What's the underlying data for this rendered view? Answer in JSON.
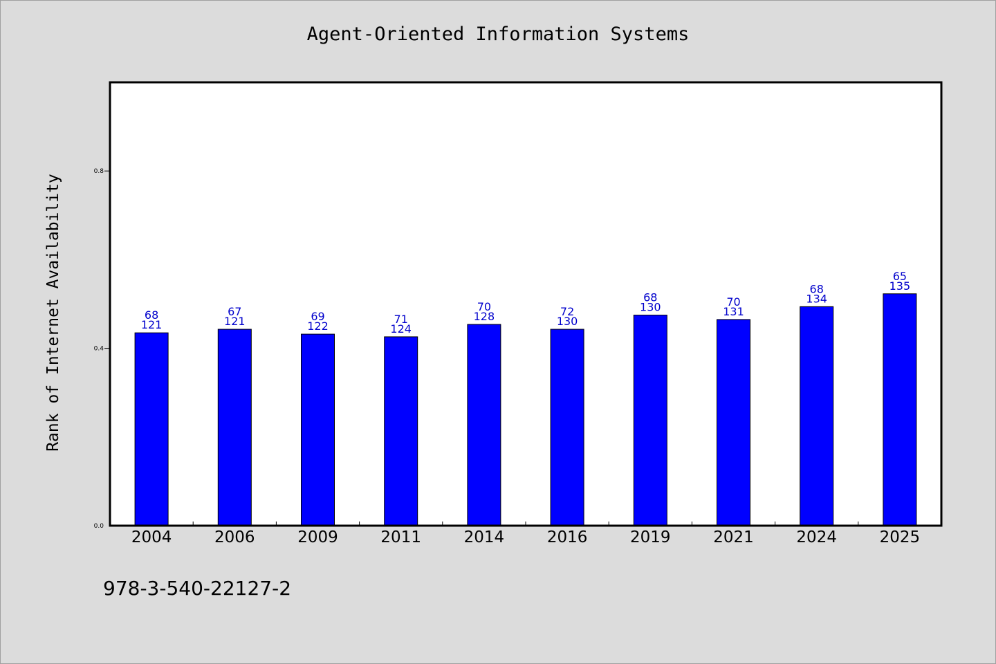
{
  "title": "Agent-Oriented Information Systems",
  "footer": "978-3-540-22127-2",
  "chart_data": {
    "type": "bar",
    "title": "Agent-Oriented Information Systems",
    "xlabel": "",
    "ylabel": "Rank of Internet Availability",
    "categories": [
      "2004",
      "2006",
      "2009",
      "2011",
      "2014",
      "2016",
      "2019",
      "2021",
      "2024",
      "2025"
    ],
    "values": [
      0.435,
      0.443,
      0.432,
      0.426,
      0.454,
      0.443,
      0.475,
      0.465,
      0.494,
      0.523
    ],
    "data_labels_top": [
      "68",
      "67",
      "69",
      "71",
      "70",
      "72",
      "68",
      "70",
      "68",
      "65"
    ],
    "data_labels_bottom": [
      "121",
      "121",
      "122",
      "124",
      "128",
      "130",
      "130",
      "131",
      "134",
      "135"
    ],
    "yticks": [
      "0.0",
      "0.4",
      "0.8"
    ],
    "ytick_values": [
      0.0,
      0.4,
      0.8
    ],
    "ylim": [
      0,
      1.0
    ],
    "grid": false,
    "legend": "none",
    "bar_color": "#0000ff",
    "label_color": "#0000cc"
  }
}
